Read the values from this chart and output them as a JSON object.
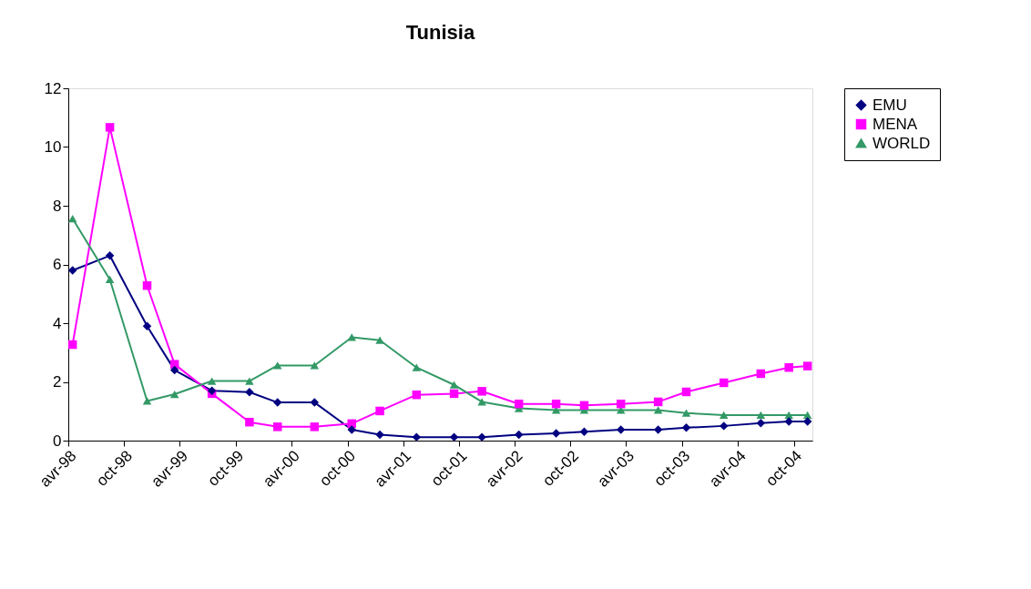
{
  "chart_data": {
    "type": "line",
    "title": "Tunisia",
    "x": [
      "1998-04-15",
      "1998-08-15",
      "1998-12-15",
      "1999-03-15",
      "1999-07-15",
      "1999-11-15",
      "2000-02-15",
      "2000-06-15",
      "2000-10-15",
      "2001-01-15",
      "2001-05-15",
      "2001-09-15",
      "2001-12-15",
      "2002-04-15",
      "2002-08-15",
      "2002-11-15",
      "2003-03-15",
      "2003-07-15",
      "2003-10-15",
      "2004-02-15",
      "2004-06-15",
      "2004-09-15",
      "2004-11-15"
    ],
    "series": [
      {
        "name": "EMU",
        "color": "#000080",
        "marker": "diamond",
        "values": [
          5.8,
          6.3,
          3.9,
          2.4,
          1.7,
          1.65,
          1.3,
          1.3,
          0.37,
          0.2,
          0.12,
          0.12,
          0.12,
          0.2,
          0.25,
          0.3,
          0.37,
          0.37,
          0.44,
          0.5,
          0.6,
          0.65,
          0.65
        ]
      },
      {
        "name": "MENA",
        "color": "#ff00ff",
        "marker": "square",
        "values": [
          3.27,
          10.67,
          5.28,
          2.6,
          1.6,
          0.63,
          0.47,
          0.47,
          0.58,
          1.01,
          1.56,
          1.6,
          1.68,
          1.25,
          1.25,
          1.2,
          1.25,
          1.32,
          1.66,
          1.97,
          2.28,
          2.49,
          2.54
        ]
      },
      {
        "name": "WORLD",
        "color": "#339966",
        "marker": "triangle",
        "values": [
          7.56,
          5.49,
          1.35,
          1.58,
          2.03,
          2.03,
          2.56,
          2.56,
          3.52,
          3.42,
          2.49,
          1.9,
          1.32,
          1.1,
          1.04,
          1.04,
          1.04,
          1.04,
          0.94,
          0.87,
          0.87,
          0.87,
          0.87
        ]
      }
    ],
    "xlim": [
      "1998-04-01",
      "2004-12-01"
    ],
    "xticks": [
      {
        "value": "1998-04-01",
        "label": "avr-98"
      },
      {
        "value": "1998-10-01",
        "label": "oct-98"
      },
      {
        "value": "1999-04-01",
        "label": "avr-99"
      },
      {
        "value": "1999-10-01",
        "label": "oct-99"
      },
      {
        "value": "2000-04-01",
        "label": "avr-00"
      },
      {
        "value": "2000-10-01",
        "label": "oct-00"
      },
      {
        "value": "2001-04-01",
        "label": "avr-01"
      },
      {
        "value": "2001-10-01",
        "label": "oct-01"
      },
      {
        "value": "2002-04-01",
        "label": "avr-02"
      },
      {
        "value": "2002-10-01",
        "label": "oct-02"
      },
      {
        "value": "2003-04-01",
        "label": "avr-03"
      },
      {
        "value": "2003-10-01",
        "label": "oct-03"
      },
      {
        "value": "2004-04-01",
        "label": "avr-04"
      },
      {
        "value": "2004-10-01",
        "label": "oct-04"
      }
    ],
    "ylim": [
      0,
      12
    ],
    "yticks": [
      0,
      2,
      4,
      6,
      8,
      10,
      12
    ],
    "grid": false,
    "legend": "right",
    "line_style": "solid"
  }
}
